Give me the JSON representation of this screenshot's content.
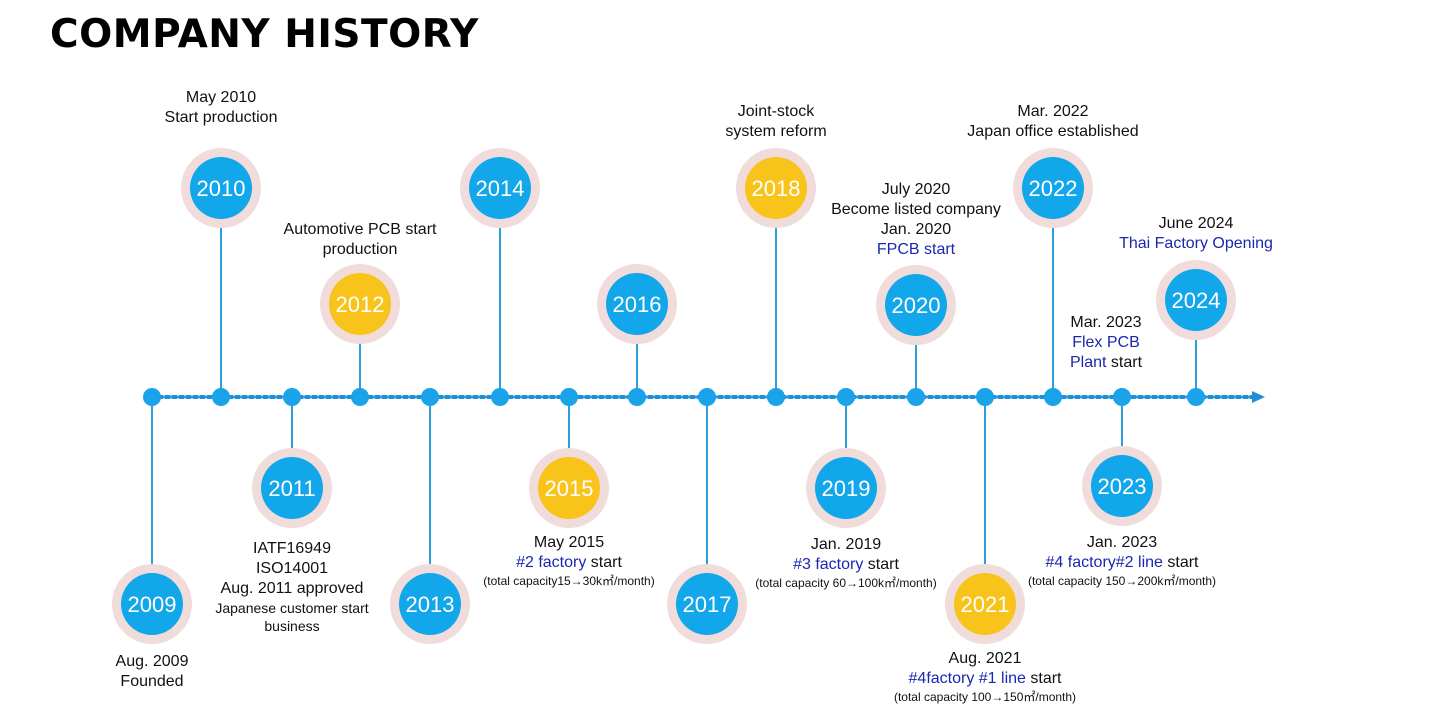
{
  "title": "COMPANY HISTORY",
  "colors": {
    "line": "#1e8fd8",
    "dot": "#1aa3e8",
    "blue_node": "#12a6ea",
    "gold_node": "#f8c31a",
    "ring": "#f1dcdc",
    "highlight_text": "#1a27b0"
  },
  "timeline": [
    {
      "year": "2009",
      "color": "blue",
      "position": "below",
      "lines": [
        {
          "text": "Aug. 2009"
        },
        {
          "text": "Founded"
        }
      ]
    },
    {
      "year": "2010",
      "color": "blue",
      "position": "above",
      "lines": [
        {
          "text": "May 2010"
        },
        {
          "text": "Start production"
        }
      ]
    },
    {
      "year": "2011",
      "color": "blue",
      "position": "below",
      "lines": [
        {
          "text": "IATF16949"
        },
        {
          "text": "ISO14001"
        },
        {
          "text": "Aug. 2011 approved"
        },
        {
          "text": "Japanese customer start",
          "size": "mid"
        },
        {
          "text": "business",
          "size": "mid"
        }
      ]
    },
    {
      "year": "2012",
      "color": "gold",
      "position": "above",
      "lines": [
        {
          "text": "Automotive PCB start"
        },
        {
          "text": "production"
        }
      ]
    },
    {
      "year": "2013",
      "color": "blue",
      "position": "below",
      "lines": []
    },
    {
      "year": "2014",
      "color": "blue",
      "position": "above",
      "lines": []
    },
    {
      "year": "2015",
      "color": "gold",
      "position": "below",
      "lines": [
        {
          "text": "May 2015"
        },
        {
          "hl": "#2 factory",
          "text": " start"
        },
        {
          "text": "(total capacity15→30k㎡/month)",
          "size": "small"
        }
      ]
    },
    {
      "year": "2016",
      "color": "blue",
      "position": "above",
      "lines": []
    },
    {
      "year": "2017",
      "color": "blue",
      "position": "below",
      "lines": []
    },
    {
      "year": "2018",
      "color": "gold",
      "position": "above",
      "lines": [
        {
          "text": "Joint-stock"
        },
        {
          "text": "system reform"
        }
      ]
    },
    {
      "year": "2019",
      "color": "blue",
      "position": "below",
      "lines": [
        {
          "text": "Jan. 2019"
        },
        {
          "hl": "#3 factory",
          "text": " start"
        },
        {
          "text": "(total capacity 60→100k㎡/month)",
          "size": "small"
        }
      ]
    },
    {
      "year": "2020",
      "color": "blue",
      "position": "above",
      "lines": [
        {
          "text": "July 2020"
        },
        {
          "text": "Become listed company"
        },
        {
          "text": "Jan. 2020"
        },
        {
          "hl": "FPCB start"
        }
      ]
    },
    {
      "year": "2021",
      "color": "gold",
      "position": "below",
      "lines": [
        {
          "text": "Aug. 2021"
        },
        {
          "hl": "#4factory #1 line",
          "text": " start"
        },
        {
          "text": "(total capacity 100→150㎡/month)",
          "size": "small"
        }
      ]
    },
    {
      "year": "2022",
      "color": "blue",
      "position": "above",
      "lines": [
        {
          "text": "Mar. 2022"
        },
        {
          "text": "Japan office established"
        }
      ]
    },
    {
      "year": "2023",
      "color": "blue",
      "position": "below",
      "lines": [
        {
          "text": "Jan. 2023"
        },
        {
          "hl": "#4 factory#2 line",
          "text": " start"
        },
        {
          "text": "(total capacity 150→200k㎡/month)",
          "size": "small"
        }
      ]
    },
    {
      "year": "2023",
      "color": "blue",
      "position": "above-label-only",
      "lines": [
        {
          "text": "Mar. 2023"
        },
        {
          "hl": "Flex PCB"
        },
        {
          "hl": "Plant",
          "text": " start"
        }
      ]
    },
    {
      "year": "2024",
      "color": "blue",
      "position": "above",
      "lines": [
        {
          "text": "June 2024"
        },
        {
          "hl": "Thai Factory Opening"
        }
      ]
    }
  ]
}
